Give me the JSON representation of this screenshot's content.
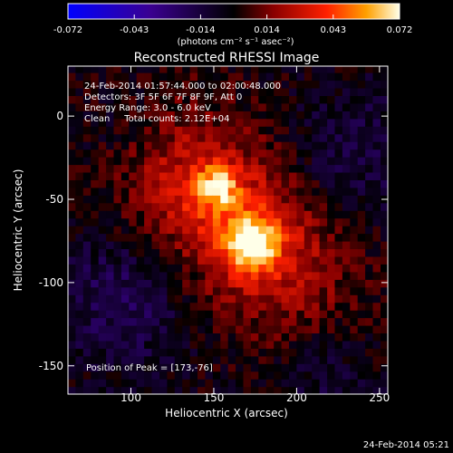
{
  "chart_data": {
    "type": "heatmap",
    "title": "Reconstructed RHESSI Image",
    "xlabel": "Heliocentric X (arcsec)",
    "ylabel": "Heliocentric Y (arcsec)",
    "xlim": [
      62,
      255
    ],
    "ylim": [
      -167,
      30
    ],
    "xticks": [
      100,
      150,
      200,
      250
    ],
    "yticks": [
      0,
      -50,
      -100,
      -150
    ],
    "colorbar": {
      "ticks": [
        "-0.072",
        "-0.043",
        "-0.014",
        "0.014",
        "0.043",
        "0.072"
      ],
      "range": [
        -0.072,
        0.072
      ],
      "unit_label": "(photons cm⁻² s⁻¹ asec⁻²)"
    },
    "annotations": [
      "24-Feb-2014 01:57:44.000 to 02:00:48.000",
      "Detectors: 3F 5F 6F 7F 8F 9F, Att 0",
      "Energy Range: 3.0 - 6.0 keV",
      "Clean     Total counts: 2.12E+04"
    ],
    "peak_label": "Position of Peak = [173,-76]",
    "peak": {
      "x": 173,
      "y": -76
    },
    "secondary_peak": {
      "x": 152,
      "y": -42
    },
    "timestamp": "24-Feb-2014 05:21",
    "max_value": 0.072
  }
}
